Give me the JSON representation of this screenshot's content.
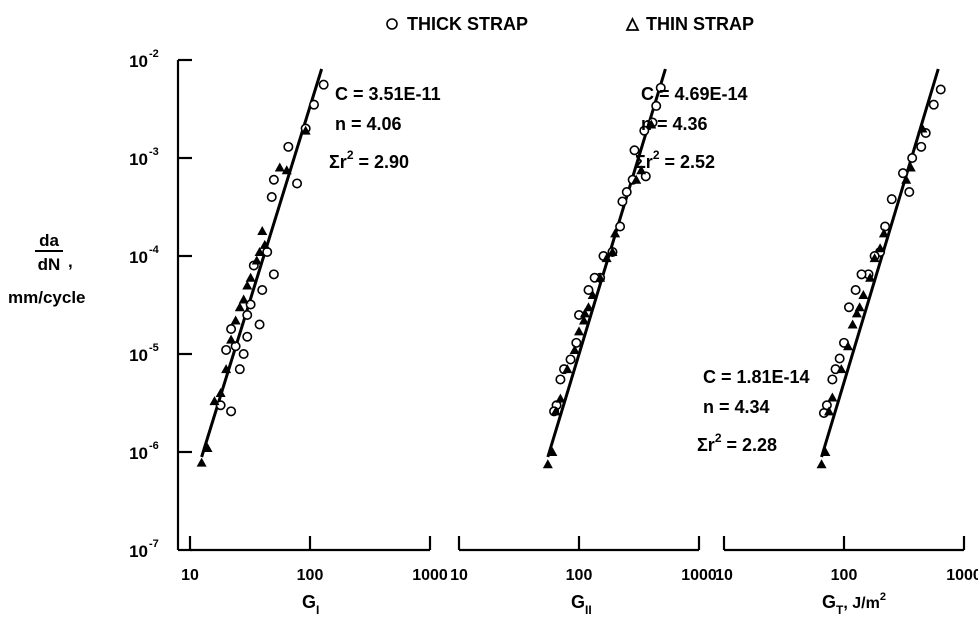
{
  "legend": {
    "thick_label": "THICK STRAP",
    "thin_label": "THIN STRAP",
    "thick_marker": "open-circle",
    "thin_marker": "filled-triangle"
  },
  "y_axis": {
    "label_top": "da",
    "label_bottom": "dN",
    "label_comma": ",",
    "unit": "mm/cycle",
    "ticks": [
      {
        "value": 1e-07,
        "base": "10",
        "exp": "-7"
      },
      {
        "value": 1e-06,
        "base": "10",
        "exp": "-6"
      },
      {
        "value": 1e-05,
        "base": "10",
        "exp": "-5"
      },
      {
        "value": 0.0001,
        "base": "10",
        "exp": "-4"
      },
      {
        "value": 0.001,
        "base": "10",
        "exp": "-3"
      },
      {
        "value": 0.01,
        "base": "10",
        "exp": "-2"
      }
    ]
  },
  "chart_data": [
    {
      "type": "scatter",
      "x_scale": "log",
      "y_scale": "log",
      "xlim": [
        10,
        1000
      ],
      "ylim": [
        1e-07,
        0.01
      ],
      "x_ticks": [
        "10",
        "100",
        "1000"
      ],
      "xlabel": "G_I",
      "xlabel_main": "G",
      "xlabel_sub": "I",
      "xlabel_unit": "",
      "fit": {
        "C_label": "C = 3.51E-11",
        "n_label": "n = 4.06",
        "r2_label": "Σr",
        "r2_exp": "2",
        "r2_value": " = 2.90",
        "x_range": [
          12.5,
          125
        ]
      },
      "series": [
        {
          "name": "THICK STRAP",
          "marker": "circle",
          "points": [
            [
              130,
              0.0056
            ],
            [
              108,
              0.0035
            ],
            [
              92,
              0.002
            ],
            [
              66,
              0.0013
            ],
            [
              78,
              0.00055
            ],
            [
              48,
              0.0004
            ],
            [
              50,
              0.0006
            ],
            [
              44,
              0.00011
            ],
            [
              50,
              6.5e-05
            ],
            [
              40,
              4.5e-05
            ],
            [
              34,
              8e-05
            ],
            [
              32,
              3.2e-05
            ],
            [
              38,
              2e-05
            ],
            [
              30,
              2.5e-05
            ],
            [
              30,
              1.5e-05
            ],
            [
              28,
              1e-05
            ],
            [
              26,
              7e-06
            ],
            [
              24,
              1.2e-05
            ],
            [
              22,
              1.8e-05
            ],
            [
              22,
              2.6e-06
            ],
            [
              18,
              3e-06
            ],
            [
              20,
              1.1e-05
            ]
          ]
        },
        {
          "name": "THIN STRAP",
          "marker": "triangle",
          "points": [
            [
              12.5,
              7.8e-07
            ],
            [
              14,
              1.1e-06
            ],
            [
              16,
              3.3e-06
            ],
            [
              18,
              4e-06
            ],
            [
              20,
              7e-06
            ],
            [
              22,
              1.4e-05
            ],
            [
              24,
              2.2e-05
            ],
            [
              26,
              3e-05
            ],
            [
              28,
              3.6e-05
            ],
            [
              30,
              5e-05
            ],
            [
              32,
              6e-05
            ],
            [
              36,
              9e-05
            ],
            [
              38,
              0.00011
            ],
            [
              40,
              0.00018
            ],
            [
              42,
              0.00013
            ],
            [
              56,
              0.0008
            ],
            [
              64,
              0.00075
            ],
            [
              92,
              0.0019
            ]
          ]
        }
      ]
    },
    {
      "type": "scatter",
      "x_scale": "log",
      "y_scale": "log",
      "xlim": [
        10,
        1000
      ],
      "ylim": [
        1e-07,
        0.01
      ],
      "x_ticks": [
        "10",
        "100",
        "1000"
      ],
      "xlabel": "G_II",
      "xlabel_main": "G",
      "xlabel_sub": "II",
      "xlabel_unit": "",
      "fit": {
        "C_label": "C = 4.69E-14",
        "n_label": "n = 4.36",
        "r2_label": "Σr",
        "r2_exp": "2",
        "r2_value": " = 2.52",
        "x_range": [
          55,
          525
        ]
      },
      "series": [
        {
          "name": "THICK STRAP",
          "marker": "circle",
          "points": [
            [
              480,
              0.0052
            ],
            [
              440,
              0.0034
            ],
            [
              410,
              0.0023
            ],
            [
              350,
              0.0019
            ],
            [
              290,
              0.0012
            ],
            [
              360,
              0.00065
            ],
            [
              280,
              0.0006
            ],
            [
              250,
              0.00045
            ],
            [
              230,
              0.00036
            ],
            [
              220,
              0.0002
            ],
            [
              190,
              0.00011
            ],
            [
              160,
              0.0001
            ],
            [
              150,
              6e-05
            ],
            [
              135,
              6e-05
            ],
            [
              120,
              4.5e-05
            ],
            [
              100,
              2.5e-05
            ],
            [
              95,
              1.3e-05
            ],
            [
              85,
              8.8e-06
            ],
            [
              75,
              7e-06
            ],
            [
              70,
              5.5e-06
            ],
            [
              65,
              3e-06
            ],
            [
              62,
              2.6e-06
            ]
          ]
        },
        {
          "name": "THIN STRAP",
          "marker": "triangle",
          "points": [
            [
              55,
              7.5e-07
            ],
            [
              60,
              1e-06
            ],
            [
              64,
              2.6e-06
            ],
            [
              70,
              3.5e-06
            ],
            [
              80,
              7e-06
            ],
            [
              92,
              1.1e-05
            ],
            [
              100,
              1.7e-05
            ],
            [
              110,
              2.2e-05
            ],
            [
              112,
              2.6e-05
            ],
            [
              120,
              3e-05
            ],
            [
              130,
              4e-05
            ],
            [
              150,
              6e-05
            ],
            [
              170,
              9.5e-05
            ],
            [
              190,
              0.00011
            ],
            [
              200,
              0.00017
            ],
            [
              300,
              0.0006
            ],
            [
              330,
              0.00075
            ],
            [
              400,
              0.0022
            ]
          ]
        }
      ]
    },
    {
      "type": "scatter",
      "x_scale": "log",
      "y_scale": "log",
      "xlim": [
        10,
        1000
      ],
      "ylim": [
        1e-07,
        0.01
      ],
      "x_ticks": [
        "10",
        "100",
        "1000"
      ],
      "xlabel": "G_T, J/m^2",
      "xlabel_main": "G",
      "xlabel_sub": "T",
      "xlabel_unit": ", J/m",
      "xlabel_unit_exp": "2",
      "fit": {
        "C_label": "C = 1.81E-14",
        "n_label": "n = 4.34",
        "r2_label": "Σr",
        "r2_exp": "2",
        "r2_value": " = 2.28",
        "x_range": [
          65,
          610
        ]
      },
      "series": [
        {
          "name": "THICK STRAP",
          "marker": "circle",
          "points": [
            [
              640,
              0.005
            ],
            [
              560,
              0.0035
            ],
            [
              480,
              0.0018
            ],
            [
              440,
              0.0013
            ],
            [
              370,
              0.001
            ],
            [
              310,
              0.0007
            ],
            [
              350,
              0.00045
            ],
            [
              250,
              0.00038
            ],
            [
              220,
              0.0002
            ],
            [
              200,
              0.00011
            ],
            [
              180,
              0.0001
            ],
            [
              160,
              6.5e-05
            ],
            [
              140,
              6.5e-05
            ],
            [
              125,
              4.5e-05
            ],
            [
              110,
              3e-05
            ],
            [
              100,
              1.3e-05
            ],
            [
              92,
              9e-06
            ],
            [
              85,
              7e-06
            ],
            [
              80,
              5.5e-06
            ],
            [
              72,
              3e-06
            ],
            [
              68,
              2.5e-06
            ]
          ]
        },
        {
          "name": "THIN STRAP",
          "marker": "triangle",
          "points": [
            [
              65,
              7.5e-07
            ],
            [
              70,
              1e-06
            ],
            [
              75,
              2.6e-06
            ],
            [
              80,
              3.6e-06
            ],
            [
              95,
              7e-06
            ],
            [
              108,
              1.2e-05
            ],
            [
              118,
              2e-05
            ],
            [
              128,
              2.6e-05
            ],
            [
              135,
              3e-05
            ],
            [
              145,
              4e-05
            ],
            [
              165,
              6e-05
            ],
            [
              180,
              9.5e-05
            ],
            [
              200,
              0.00012
            ],
            [
              215,
              0.00017
            ],
            [
              330,
              0.0006
            ],
            [
              360,
              0.0008
            ],
            [
              450,
              0.002
            ]
          ]
        }
      ]
    }
  ]
}
